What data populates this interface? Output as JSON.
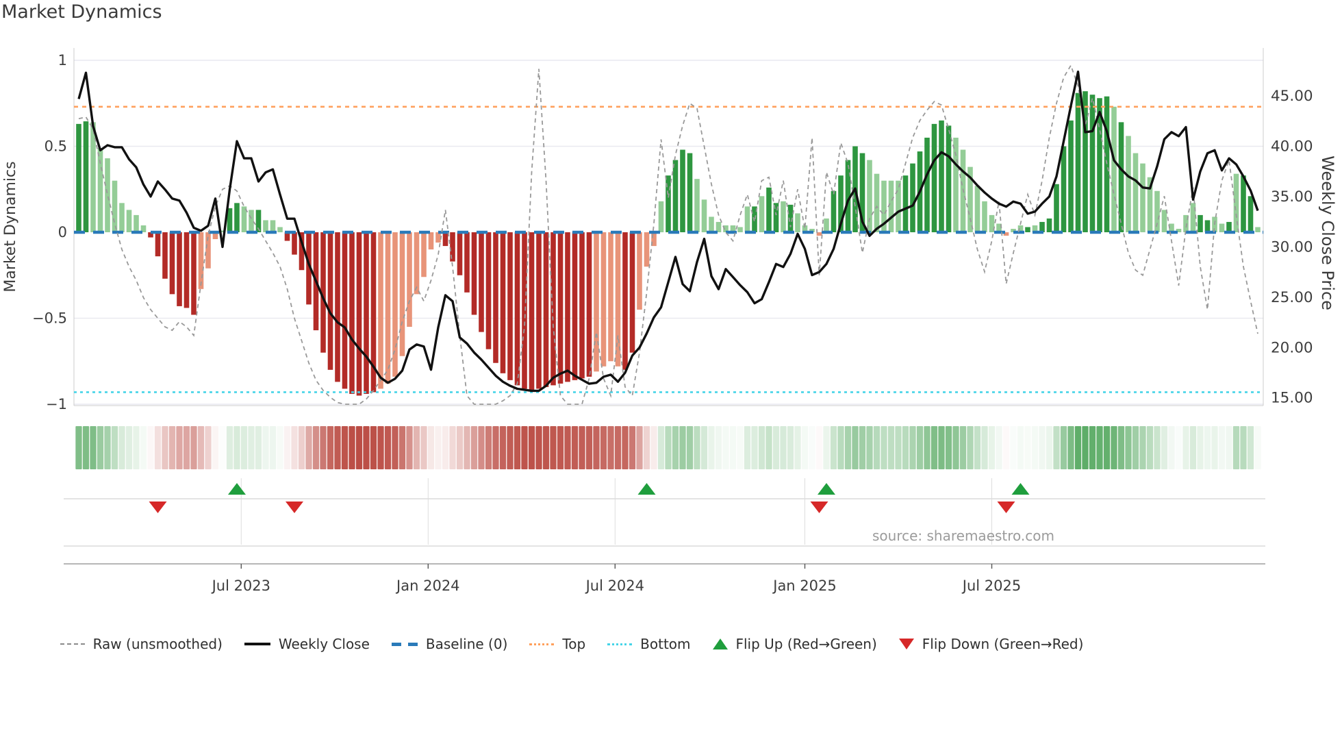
{
  "header": {
    "title": "Market Dynamics"
  },
  "page": {
    "source_text": "source: sharemaestro.com"
  },
  "chart_data": {
    "type": "combo",
    "title": "Market Dynamics",
    "ylabel_left": "Market Dynamics",
    "ylabel_right": "Weekly Close Price",
    "y_left_ticks": [
      1,
      0.5,
      0,
      -0.5,
      -1
    ],
    "y_left_tick_labels": [
      "1",
      "0.5",
      "0",
      "−0.5",
      "−1"
    ],
    "y_left_range": [
      -1.05,
      1.07
    ],
    "y_right_ticks": [
      45,
      40,
      35,
      30,
      25,
      20,
      15
    ],
    "y_right_tick_labels": [
      "45.00",
      "40.00",
      "35.00",
      "30.00",
      "25.00",
      "20.00",
      "15.00"
    ],
    "x_ticks": [
      {
        "label": "Jul 2023",
        "week": 22.6
      },
      {
        "label": "Jan 2024",
        "week": 48.6
      },
      {
        "label": "Jul 2024",
        "week": 74.6
      },
      {
        "label": "Jan 2025",
        "week": 101.0
      },
      {
        "label": "Jul 2025",
        "week": 127.0
      }
    ],
    "baseline": 0,
    "top_level": 0.73,
    "bottom_level": -0.93,
    "weeks_count": 165,
    "oscillator": [
      0.63,
      0.645,
      0.64,
      0.49,
      0.43,
      0.3,
      0.17,
      0.13,
      0.1,
      0.04,
      -0.03,
      -0.14,
      -0.27,
      -0.36,
      -0.43,
      -0.44,
      -0.48,
      -0.33,
      -0.21,
      -0.04,
      0.01,
      0.14,
      0.17,
      0.15,
      0.13,
      0.13,
      0.07,
      0.07,
      0.03,
      -0.05,
      -0.13,
      -0.22,
      -0.42,
      -0.57,
      -0.7,
      -0.8,
      -0.87,
      -0.91,
      -0.94,
      -0.95,
      -0.94,
      -0.93,
      -0.91,
      -0.88,
      -0.84,
      -0.72,
      -0.55,
      -0.36,
      -0.26,
      -0.1,
      -0.06,
      -0.08,
      -0.17,
      -0.25,
      -0.35,
      -0.48,
      -0.58,
      -0.68,
      -0.76,
      -0.82,
      -0.86,
      -0.89,
      -0.91,
      -0.92,
      -0.91,
      -0.9,
      -0.89,
      -0.88,
      -0.87,
      -0.86,
      -0.85,
      -0.84,
      -0.81,
      -0.78,
      -0.75,
      -0.78,
      -0.8,
      -0.7,
      -0.45,
      -0.2,
      -0.08,
      0.18,
      0.33,
      0.42,
      0.48,
      0.46,
      0.31,
      0.19,
      0.09,
      0.06,
      0.04,
      0.04,
      0.03,
      0.15,
      0.15,
      0.21,
      0.26,
      0.17,
      0.18,
      0.16,
      0.11,
      0.04,
      0.02,
      -0.02,
      0.08,
      0.24,
      0.33,
      0.42,
      0.5,
      0.46,
      0.42,
      0.34,
      0.3,
      0.3,
      0.3,
      0.33,
      0.4,
      0.47,
      0.55,
      0.63,
      0.65,
      0.62,
      0.55,
      0.48,
      0.38,
      0.27,
      0.18,
      0.1,
      0.05,
      -0.02,
      0.02,
      0.04,
      0.03,
      0.04,
      0.06,
      0.08,
      0.28,
      0.5,
      0.65,
      0.81,
      0.82,
      0.8,
      0.78,
      0.79,
      0.73,
      0.64,
      0.56,
      0.46,
      0.4,
      0.32,
      0.24,
      0.13,
      0.05,
      0.02,
      0.1,
      0.17,
      0.1,
      0.07,
      0.09,
      0.05,
      0.06,
      0.34,
      0.33,
      0.21,
      0.03
    ],
    "shades": "ddlllllllldddddddllllddlldllldddddddddddddllllllllldddddddddddddddddddddllllddllllddddlllllllldlddldllllldddddllllldddddddlllllllllldlddddddddddldllllllllllddlldlddlll",
    "raw": [
      0.66,
      0.67,
      0.6,
      0.4,
      0.22,
      0.05,
      -0.1,
      -0.2,
      -0.28,
      -0.38,
      -0.45,
      -0.5,
      -0.55,
      -0.57,
      -0.52,
      -0.55,
      -0.6,
      -0.3,
      -0.02,
      0.15,
      0.25,
      0.27,
      0.24,
      0.15,
      0.08,
      0.02,
      -0.05,
      -0.12,
      -0.2,
      -0.33,
      -0.5,
      -0.63,
      -0.76,
      -0.86,
      -0.92,
      -0.96,
      -0.99,
      -1.0,
      -1.0,
      -1.0,
      -0.97,
      -0.92,
      -0.86,
      -0.8,
      -0.68,
      -0.52,
      -0.4,
      -0.32,
      -0.4,
      -0.28,
      -0.13,
      0.13,
      -0.2,
      -0.6,
      -0.95,
      -1.0,
      -1.0,
      -1.0,
      -1.0,
      -0.98,
      -0.95,
      -0.88,
      -0.55,
      0.35,
      0.95,
      0.3,
      -0.55,
      -0.95,
      -1.0,
      -1.0,
      -1.0,
      -0.85,
      -0.58,
      -0.85,
      -0.95,
      -0.6,
      -0.9,
      -0.95,
      -0.7,
      -0.35,
      0.05,
      0.54,
      0.2,
      0.45,
      0.62,
      0.75,
      0.72,
      0.5,
      0.28,
      0.1,
      0.0,
      -0.05,
      0.1,
      0.22,
      0.06,
      0.3,
      0.32,
      0.1,
      0.3,
      0.03,
      0.25,
      0.02,
      0.55,
      -0.25,
      0.35,
      0.22,
      0.52,
      0.4,
      0.15,
      -0.12,
      0.08,
      0.15,
      0.1,
      0.18,
      0.25,
      0.4,
      0.55,
      0.65,
      0.71,
      0.76,
      0.74,
      0.6,
      0.45,
      0.25,
      0.08,
      -0.1,
      -0.23,
      -0.05,
      0.18,
      -0.3,
      -0.12,
      0.05,
      0.22,
      0.1,
      0.3,
      0.55,
      0.75,
      0.9,
      0.97,
      0.85,
      0.62,
      0.78,
      0.6,
      0.4,
      0.22,
      0.05,
      -0.12,
      -0.22,
      -0.25,
      -0.1,
      0.05,
      0.21,
      -0.05,
      -0.31,
      0.02,
      0.26,
      -0.2,
      -0.45,
      0.05,
      0.3,
      0.42,
      0.1,
      -0.2,
      -0.4,
      -0.59
    ],
    "price": [
      44.7,
      47.3,
      42.0,
      39.6,
      40.1,
      39.9,
      39.9,
      38.7,
      37.9,
      36.2,
      35.0,
      36.5,
      35.7,
      34.8,
      34.6,
      33.4,
      31.9,
      31.6,
      32.1,
      34.8,
      30.0,
      35.7,
      40.5,
      38.8,
      38.8,
      36.5,
      37.4,
      37.7,
      35.2,
      32.8,
      32.8,
      30.5,
      28.3,
      26.6,
      24.9,
      23.4,
      22.5,
      22.0,
      20.8,
      19.9,
      19.1,
      18.1,
      17.0,
      16.5,
      16.9,
      17.7,
      19.8,
      20.3,
      20.1,
      17.8,
      22.0,
      25.2,
      24.6,
      21.0,
      20.4,
      19.5,
      18.8,
      18.0,
      17.2,
      16.6,
      16.2,
      15.9,
      15.8,
      15.7,
      15.7,
      16.2,
      17.0,
      17.4,
      17.7,
      17.2,
      16.8,
      16.4,
      16.5,
      17.1,
      17.3,
      16.6,
      17.5,
      19.2,
      20.0,
      21.4,
      23.0,
      24.0,
      26.5,
      29.0,
      26.3,
      25.6,
      28.5,
      30.8,
      27.1,
      25.8,
      27.8,
      27.0,
      26.2,
      25.5,
      24.4,
      24.8,
      26.5,
      28.3,
      28.0,
      29.3,
      31.3,
      29.8,
      27.2,
      27.5,
      28.3,
      29.8,
      32.3,
      34.6,
      35.8,
      32.5,
      31.1,
      31.8,
      32.3,
      32.9,
      33.5,
      33.8,
      34.1,
      35.5,
      37.2,
      38.6,
      39.4,
      39.0,
      38.2,
      37.5,
      36.9,
      36.1,
      35.4,
      34.8,
      34.3,
      34.0,
      34.5,
      34.3,
      33.3,
      33.5,
      34.3,
      35.0,
      37.0,
      40.5,
      44.0,
      47.4,
      41.4,
      41.5,
      43.4,
      41.5,
      38.6,
      37.7,
      37.0,
      36.6,
      35.9,
      35.8,
      38.0,
      40.7,
      41.4,
      41.0,
      41.9,
      34.7,
      37.5,
      39.3,
      39.6,
      37.6,
      38.8,
      38.2,
      37.0,
      35.6,
      33.6
    ],
    "flip_up_weeks": [
      22,
      79,
      104,
      131
    ],
    "flip_down_weeks": [
      11,
      30,
      103,
      129
    ],
    "legend": [
      {
        "label": "Raw (unsmoothed)",
        "swatch": "gray-dashed-line"
      },
      {
        "label": "Weekly Close",
        "swatch": "black-solid-line"
      },
      {
        "label": "Baseline (0)",
        "swatch": "blue-dashes"
      },
      {
        "label": "Top",
        "swatch": "orange-dots"
      },
      {
        "label": "Bottom",
        "swatch": "cyan-dots"
      },
      {
        "label": "Flip Up (Red→Green)",
        "swatch": "green-up-triangle"
      },
      {
        "label": "Flip Down (Green→Red)",
        "swatch": "red-down-triangle"
      }
    ],
    "colors": {
      "bar_pos_strong": "#2e9640",
      "bar_pos_weak": "#94cd97",
      "bar_neg_strong": "#b32b27",
      "bar_neg_weak": "#e89479",
      "price_line": "#111111",
      "raw_line": "#999999",
      "baseline": "#2a7ab9",
      "top_line": "#ffa05c",
      "bottom_line": "#45d4e8",
      "flip_up": "#1f9e3d",
      "flip_down": "#d62828",
      "heat_pos": "#3f9d4b",
      "heat_neg": "#b8453c",
      "grid": "#e9e9f0",
      "spine": "#cccccc",
      "axis_text": "#3d3d3d"
    }
  }
}
